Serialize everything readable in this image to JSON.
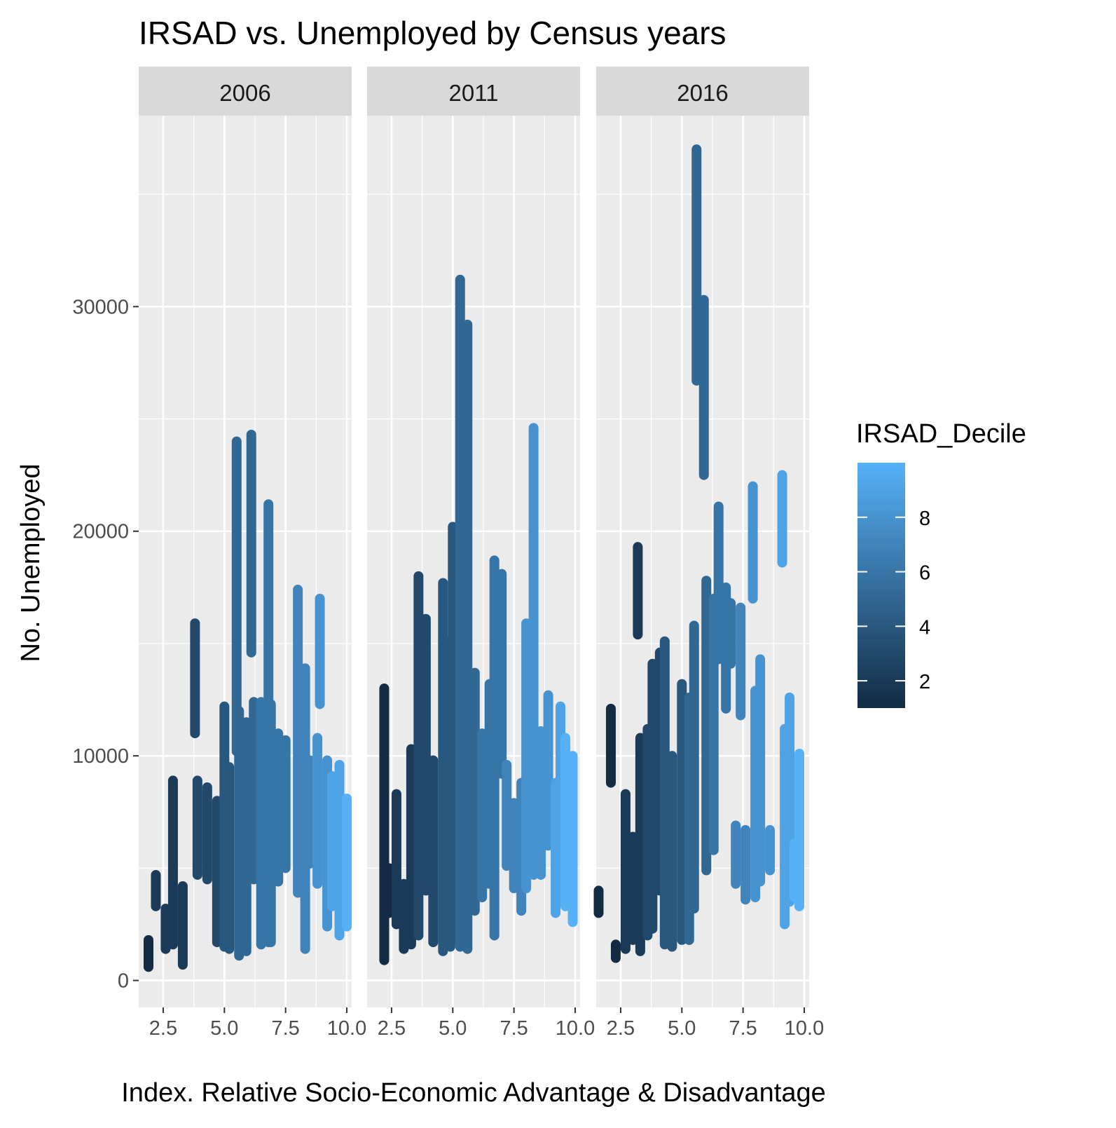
{
  "chart_data": {
    "type": "scatter",
    "title": "IRSAD vs. Unemployed by Census years",
    "xlabel": "Index. Relative Socio-Economic Advantage & Disadvantage",
    "ylabel": "No. Unemployed",
    "xlim": [
      1.5,
      10.2
    ],
    "ylim": [
      -1200,
      38500
    ],
    "x_ticks": [
      2.5,
      5.0,
      7.5,
      10.0
    ],
    "x_tick_labels": [
      "2.5",
      "5.0",
      "7.5",
      "10.0"
    ],
    "y_ticks": [
      0,
      10000,
      20000,
      30000
    ],
    "y_tick_labels": [
      "0",
      "10000",
      "20000",
      "30000"
    ],
    "grid": true,
    "facets": [
      {
        "label": "2006",
        "columns": [
          {
            "x": 1.9,
            "decile": 1,
            "ymin": 600,
            "ymax": 1800
          },
          {
            "x": 2.2,
            "decile": 2,
            "ymin": 3300,
            "ymax": 4700
          },
          {
            "x": 2.6,
            "decile": 2,
            "ymin": 1400,
            "ymax": 3200
          },
          {
            "x": 2.9,
            "decile": 2,
            "ymin": 1600,
            "ymax": 8900
          },
          {
            "x": 3.3,
            "decile": 2,
            "ymin": 700,
            "ymax": 4200
          },
          {
            "x": 3.8,
            "decile": 3,
            "ymin": 11000,
            "ymax": 15900
          },
          {
            "x": 3.9,
            "decile": 3,
            "ymin": 4700,
            "ymax": 8900
          },
          {
            "x": 4.3,
            "decile": 3,
            "ymin": 4500,
            "ymax": 8600
          },
          {
            "x": 4.7,
            "decile": 3,
            "ymin": 1700,
            "ymax": 8000
          },
          {
            "x": 5.0,
            "decile": 4,
            "ymin": 1500,
            "ymax": 12200
          },
          {
            "x": 5.2,
            "decile": 4,
            "ymin": 1400,
            "ymax": 9500
          },
          {
            "x": 5.5,
            "decile": 5,
            "ymin": 10200,
            "ymax": 24000
          },
          {
            "x": 5.6,
            "decile": 5,
            "ymin": 1100,
            "ymax": 12000
          },
          {
            "x": 5.9,
            "decile": 5,
            "ymin": 1300,
            "ymax": 11500
          },
          {
            "x": 6.1,
            "decile": 5,
            "ymin": 14600,
            "ymax": 24300
          },
          {
            "x": 6.2,
            "decile": 5,
            "ymin": 4500,
            "ymax": 12400
          },
          {
            "x": 6.5,
            "decile": 6,
            "ymin": 1600,
            "ymax": 12400
          },
          {
            "x": 6.8,
            "decile": 6,
            "ymin": 1700,
            "ymax": 21200
          },
          {
            "x": 6.9,
            "decile": 6,
            "ymin": 1700,
            "ymax": 12300
          },
          {
            "x": 7.2,
            "decile": 6,
            "ymin": 4400,
            "ymax": 11000
          },
          {
            "x": 7.5,
            "decile": 6,
            "ymin": 5000,
            "ymax": 10700
          },
          {
            "x": 8.0,
            "decile": 7,
            "ymin": 3900,
            "ymax": 17400
          },
          {
            "x": 8.3,
            "decile": 7,
            "ymin": 1400,
            "ymax": 13900
          },
          {
            "x": 8.5,
            "decile": 7,
            "ymin": 5200,
            "ymax": 9800
          },
          {
            "x": 8.8,
            "decile": 8,
            "ymin": 4300,
            "ymax": 10800
          },
          {
            "x": 8.9,
            "decile": 8,
            "ymin": 12300,
            "ymax": 17000
          },
          {
            "x": 9.2,
            "decile": 8,
            "ymin": 2400,
            "ymax": 9800
          },
          {
            "x": 9.4,
            "decile": 9,
            "ymin": 3300,
            "ymax": 9100
          },
          {
            "x": 9.7,
            "decile": 9,
            "ymin": 2000,
            "ymax": 9600
          },
          {
            "x": 10.0,
            "decile": 10,
            "ymin": 2400,
            "ymax": 8100
          }
        ]
      },
      {
        "label": "2011",
        "columns": [
          {
            "x": 2.2,
            "decile": 1,
            "ymin": 900,
            "ymax": 13000
          },
          {
            "x": 2.4,
            "decile": 1,
            "ymin": 3000,
            "ymax": 5000
          },
          {
            "x": 2.7,
            "decile": 2,
            "ymin": 2500,
            "ymax": 8300
          },
          {
            "x": 3.0,
            "decile": 2,
            "ymin": 1400,
            "ymax": 4300
          },
          {
            "x": 3.3,
            "decile": 2,
            "ymin": 1600,
            "ymax": 10300
          },
          {
            "x": 3.6,
            "decile": 3,
            "ymin": 2000,
            "ymax": 18000
          },
          {
            "x": 3.9,
            "decile": 3,
            "ymin": 4000,
            "ymax": 16100
          },
          {
            "x": 4.2,
            "decile": 3,
            "ymin": 1700,
            "ymax": 9800
          },
          {
            "x": 4.6,
            "decile": 4,
            "ymin": 1300,
            "ymax": 17700
          },
          {
            "x": 4.9,
            "decile": 4,
            "ymin": 1500,
            "ymax": 15100
          },
          {
            "x": 5.0,
            "decile": 4,
            "ymin": 1800,
            "ymax": 20200
          },
          {
            "x": 5.3,
            "decile": 5,
            "ymin": 1500,
            "ymax": 31200
          },
          {
            "x": 5.6,
            "decile": 5,
            "ymin": 1400,
            "ymax": 29200
          },
          {
            "x": 5.9,
            "decile": 5,
            "ymin": 3100,
            "ymax": 13700
          },
          {
            "x": 6.2,
            "decile": 6,
            "ymin": 3700,
            "ymax": 11000
          },
          {
            "x": 6.5,
            "decile": 6,
            "ymin": 4300,
            "ymax": 13200
          },
          {
            "x": 6.7,
            "decile": 6,
            "ymin": 2000,
            "ymax": 18700
          },
          {
            "x": 7.0,
            "decile": 6,
            "ymin": 9200,
            "ymax": 18100
          },
          {
            "x": 7.2,
            "decile": 7,
            "ymin": 5100,
            "ymax": 9600
          },
          {
            "x": 7.5,
            "decile": 7,
            "ymin": 4100,
            "ymax": 7900
          },
          {
            "x": 7.8,
            "decile": 7,
            "ymin": 3100,
            "ymax": 8800
          },
          {
            "x": 8.0,
            "decile": 8,
            "ymin": 4100,
            "ymax": 15900
          },
          {
            "x": 8.3,
            "decile": 8,
            "ymin": 4700,
            "ymax": 24600
          },
          {
            "x": 8.6,
            "decile": 8,
            "ymin": 4700,
            "ymax": 11100
          },
          {
            "x": 8.9,
            "decile": 8,
            "ymin": 6000,
            "ymax": 12700
          },
          {
            "x": 9.2,
            "decile": 9,
            "ymin": 3000,
            "ymax": 8800
          },
          {
            "x": 9.4,
            "decile": 9,
            "ymin": 3900,
            "ymax": 12200
          },
          {
            "x": 9.6,
            "decile": 10,
            "ymin": 3300,
            "ymax": 10800
          },
          {
            "x": 9.9,
            "decile": 10,
            "ymin": 2600,
            "ymax": 10000
          }
        ]
      },
      {
        "label": "2016",
        "columns": [
          {
            "x": 1.6,
            "decile": 1,
            "ymin": 3000,
            "ymax": 4000
          },
          {
            "x": 2.1,
            "decile": 1,
            "ymin": 8800,
            "ymax": 12100
          },
          {
            "x": 2.3,
            "decile": 1,
            "ymin": 1000,
            "ymax": 1600
          },
          {
            "x": 2.7,
            "decile": 2,
            "ymin": 1400,
            "ymax": 8300
          },
          {
            "x": 3.0,
            "decile": 2,
            "ymin": 1800,
            "ymax": 6400
          },
          {
            "x": 3.2,
            "decile": 2,
            "ymin": 15400,
            "ymax": 19300
          },
          {
            "x": 3.3,
            "decile": 2,
            "ymin": 1300,
            "ymax": 10800
          },
          {
            "x": 3.6,
            "decile": 3,
            "ymin": 2000,
            "ymax": 11200
          },
          {
            "x": 3.8,
            "decile": 3,
            "ymin": 2300,
            "ymax": 14100
          },
          {
            "x": 4.1,
            "decile": 3,
            "ymin": 4000,
            "ymax": 14600
          },
          {
            "x": 4.3,
            "decile": 4,
            "ymin": 1600,
            "ymax": 15100
          },
          {
            "x": 4.6,
            "decile": 4,
            "ymin": 1500,
            "ymax": 10000
          },
          {
            "x": 5.0,
            "decile": 4,
            "ymin": 1800,
            "ymax": 13200
          },
          {
            "x": 5.3,
            "decile": 5,
            "ymin": 1800,
            "ymax": 12600
          },
          {
            "x": 5.5,
            "decile": 5,
            "ymin": 3200,
            "ymax": 15800
          },
          {
            "x": 5.6,
            "decile": 5,
            "ymin": 26700,
            "ymax": 37000
          },
          {
            "x": 5.9,
            "decile": 5,
            "ymin": 22500,
            "ymax": 30300
          },
          {
            "x": 6.0,
            "decile": 5,
            "ymin": 4900,
            "ymax": 17800
          },
          {
            "x": 6.3,
            "decile": 6,
            "ymin": 5800,
            "ymax": 17000
          },
          {
            "x": 6.5,
            "decile": 6,
            "ymin": 14300,
            "ymax": 21100
          },
          {
            "x": 6.8,
            "decile": 6,
            "ymin": 12100,
            "ymax": 17500
          },
          {
            "x": 7.0,
            "decile": 6,
            "ymin": 14100,
            "ymax": 16800
          },
          {
            "x": 7.2,
            "decile": 7,
            "ymin": 4300,
            "ymax": 6900
          },
          {
            "x": 7.4,
            "decile": 7,
            "ymin": 11800,
            "ymax": 16600
          },
          {
            "x": 7.6,
            "decile": 7,
            "ymin": 3600,
            "ymax": 6700
          },
          {
            "x": 7.9,
            "decile": 8,
            "ymin": 17000,
            "ymax": 22000
          },
          {
            "x": 8.0,
            "decile": 8,
            "ymin": 3700,
            "ymax": 12900
          },
          {
            "x": 8.2,
            "decile": 8,
            "ymin": 4400,
            "ymax": 14300
          },
          {
            "x": 8.6,
            "decile": 8,
            "ymin": 4900,
            "ymax": 6700
          },
          {
            "x": 9.1,
            "decile": 9,
            "ymin": 18600,
            "ymax": 22500
          },
          {
            "x": 9.2,
            "decile": 9,
            "ymin": 2500,
            "ymax": 11200
          },
          {
            "x": 9.4,
            "decile": 9,
            "ymin": 3500,
            "ymax": 12600
          },
          {
            "x": 9.6,
            "decile": 10,
            "ymin": 3700,
            "ymax": 6100
          },
          {
            "x": 9.8,
            "decile": 10,
            "ymin": 3300,
            "ymax": 10100
          }
        ]
      }
    ],
    "color_scale": {
      "title": "IRSAD_Decile",
      "min": 1,
      "max": 10,
      "low_color": "#132b43",
      "high_color": "#56b1f7",
      "breaks": [
        2,
        4,
        6,
        8
      ],
      "break_labels": [
        "2",
        "4",
        "6",
        "8"
      ],
      "legend_position": "right"
    },
    "colors": {
      "panel_background": "#ebebeb",
      "grid_major": "#ffffff",
      "strip_background": "#d9d9d9",
      "axis_text": "#4d4d4d"
    }
  }
}
